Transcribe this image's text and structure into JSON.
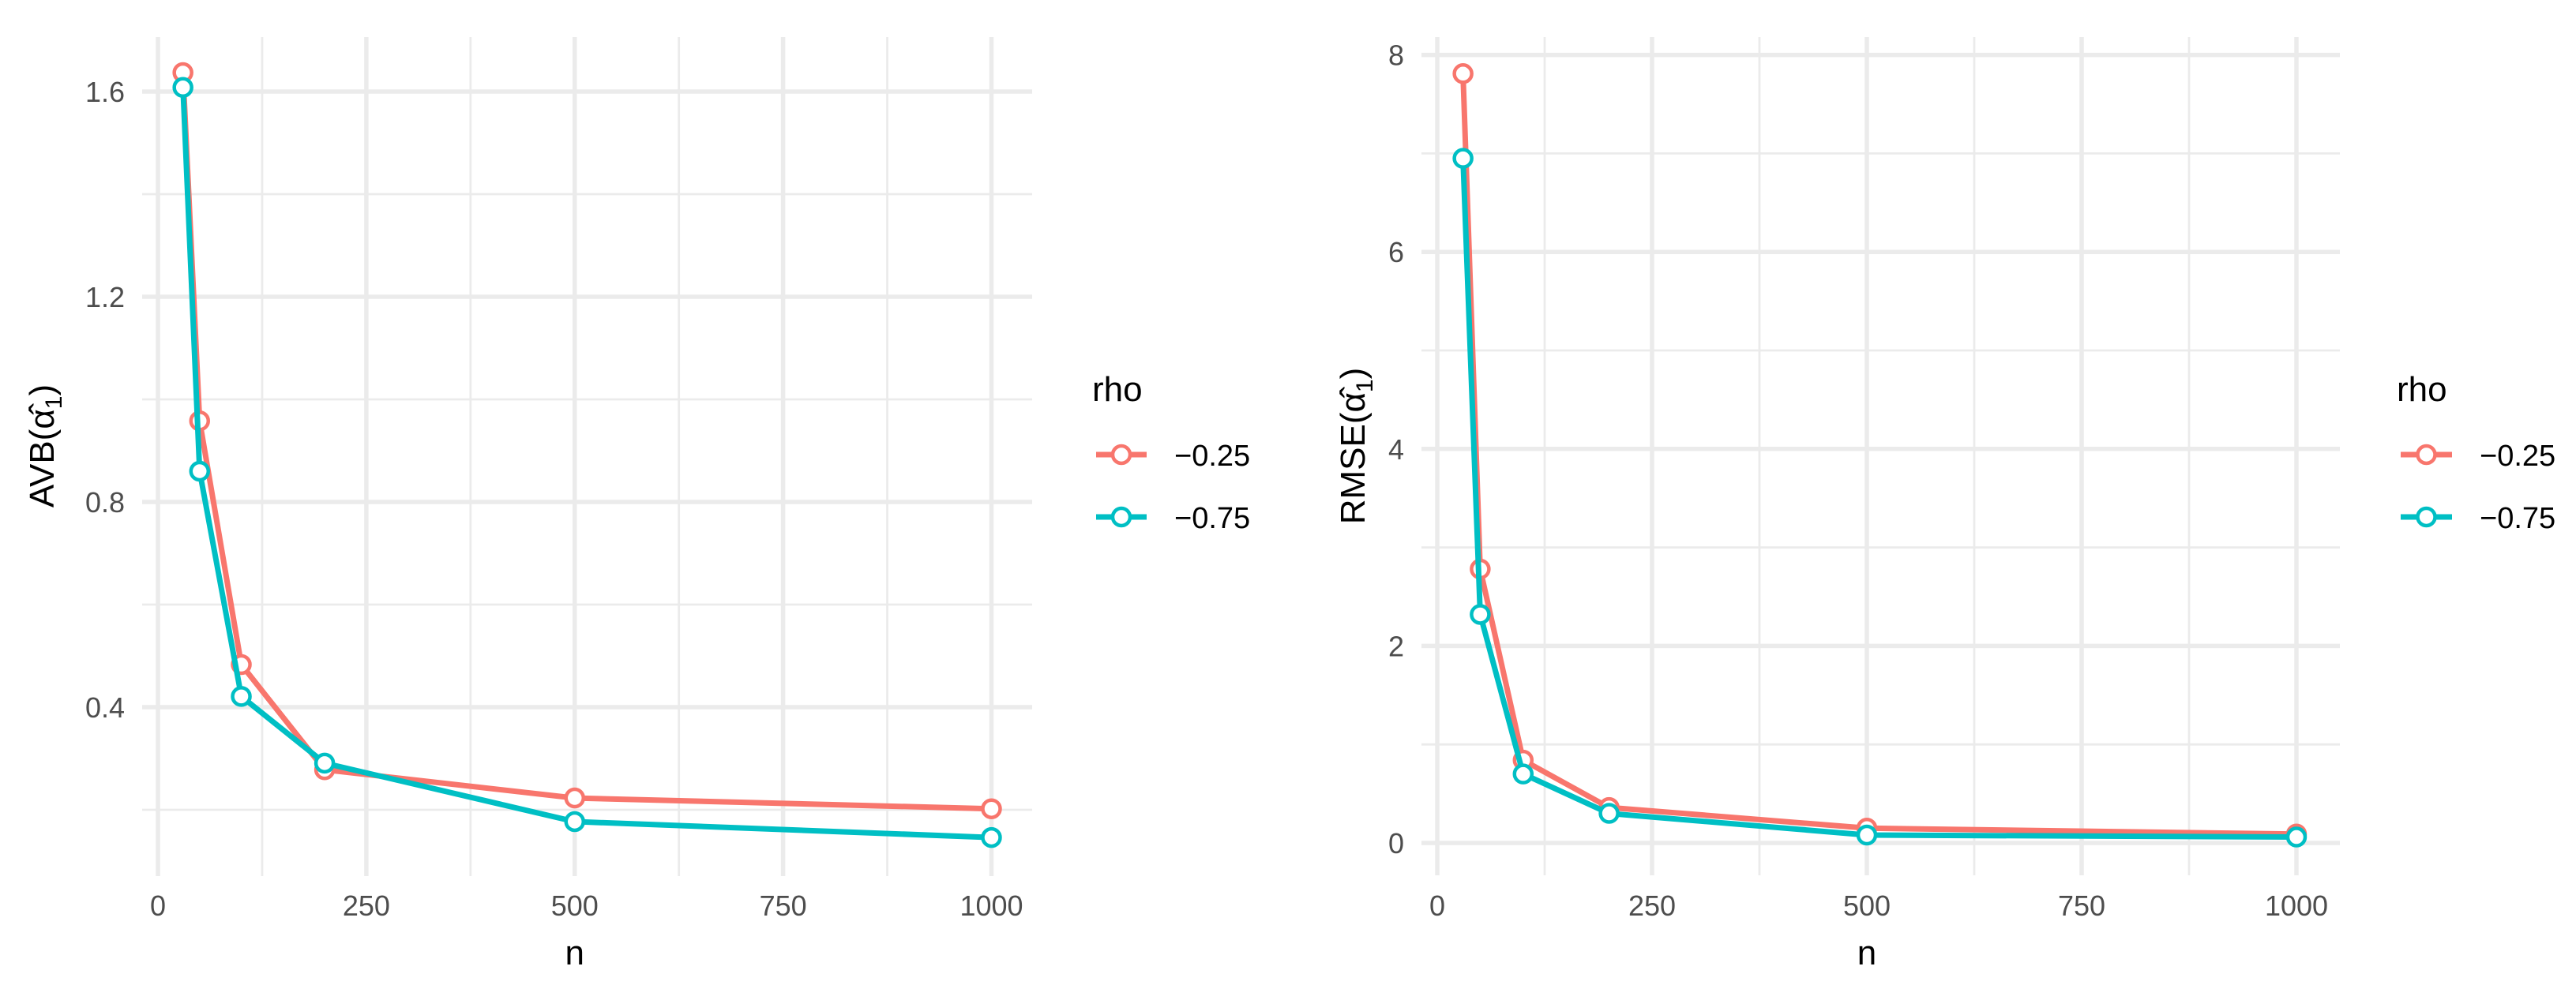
{
  "chart_data": [
    {
      "type": "line",
      "title": "",
      "xlabel": "n",
      "ylabel": "AVB(α̂1)",
      "ylabel_parts": {
        "prefix": "AVB(",
        "symbol": "α",
        "hat": "^",
        "subscript": "1",
        "suffix": ")"
      },
      "x": [
        30,
        50,
        100,
        200,
        500,
        1000
      ],
      "x_ticks": [
        "0",
        "250",
        "500",
        "750",
        "1000"
      ],
      "y_ticks": [
        "0.4",
        "0.8",
        "1.2",
        "1.6"
      ],
      "xlim": [
        0,
        1000
      ],
      "ylim": [
        0.14,
        1.64
      ],
      "grid": true,
      "legend_title": "rho",
      "legend_position": "right",
      "series": [
        {
          "name": "−0.25",
          "color": "#F8766D",
          "values": [
            1.637,
            0.958,
            0.483,
            0.278,
            0.223,
            0.202
          ]
        },
        {
          "name": "−0.75",
          "color": "#00BFC4",
          "values": [
            1.608,
            0.86,
            0.421,
            0.291,
            0.177,
            0.146
          ]
        }
      ]
    },
    {
      "type": "line",
      "title": "",
      "xlabel": "n",
      "ylabel": "RMSE(α̂1)",
      "ylabel_parts": {
        "prefix": "RMSE(",
        "symbol": "α",
        "hat": "^",
        "subscript": "1",
        "suffix": ")"
      },
      "x": [
        30,
        50,
        100,
        200,
        500,
        1000
      ],
      "x_ticks": [
        "0",
        "250",
        "500",
        "750",
        "1000"
      ],
      "y_ticks": [
        "0",
        "2",
        "4",
        "6",
        "8"
      ],
      "xlim": [
        0,
        1000
      ],
      "ylim": [
        0,
        8
      ],
      "grid": true,
      "legend_title": "rho",
      "legend_position": "right",
      "series": [
        {
          "name": "−0.25",
          "color": "#F8766D",
          "values": [
            7.81,
            2.78,
            0.84,
            0.36,
            0.15,
            0.09
          ]
        },
        {
          "name": "−0.75",
          "color": "#00BFC4",
          "values": [
            6.95,
            2.32,
            0.7,
            0.3,
            0.08,
            0.06
          ]
        }
      ]
    }
  ]
}
